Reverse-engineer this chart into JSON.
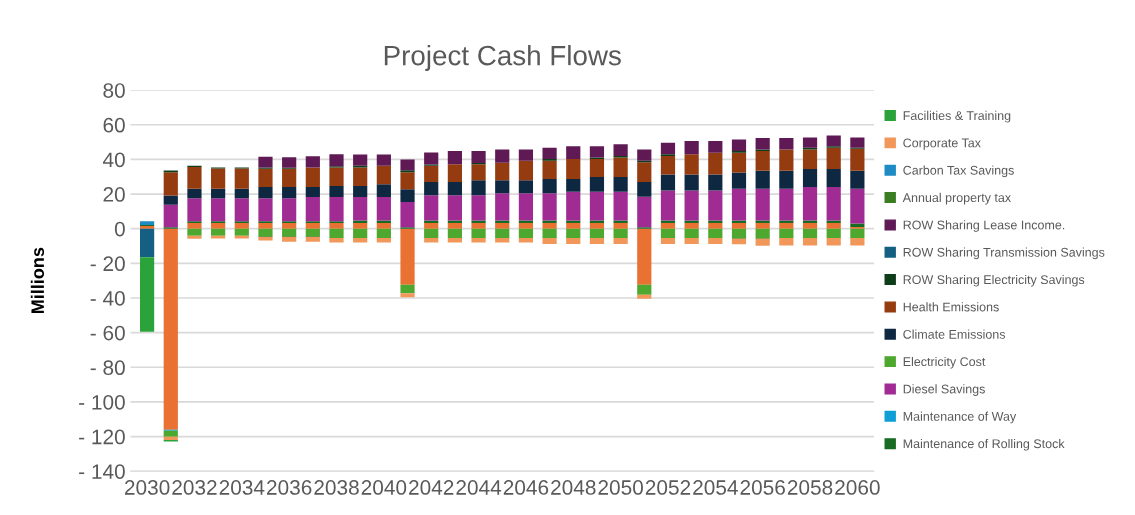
{
  "chart_data": {
    "type": "bar",
    "stacked": true,
    "title": "Project Cash Flows",
    "ylabel": "Millions",
    "categories": [
      "2030",
      null,
      "2032",
      null,
      "2034",
      null,
      "2036",
      null,
      "2038",
      null,
      "2040",
      null,
      "2042",
      null,
      "2044",
      null,
      "2046",
      null,
      "2048",
      null,
      "2050",
      null,
      "2052",
      null,
      "2054",
      null,
      "2056",
      null,
      "2058",
      null,
      "2060"
    ],
    "ylim": [
      -140,
      80
    ],
    "yticks": [
      {
        "value": -140,
        "label": "- 140"
      },
      {
        "value": -120,
        "label": "- 120"
      },
      {
        "value": -100,
        "label": "- 100"
      },
      {
        "value": -80,
        "label": "- 80"
      },
      {
        "value": -60,
        "label": "- 60"
      },
      {
        "value": -40,
        "label": "- 40"
      },
      {
        "value": -20,
        "label": "- 20"
      },
      0,
      20,
      40,
      60,
      80
    ],
    "grid": "y",
    "legend": "right",
    "series": [
      {
        "color": "#e97132",
        "values": [
          1.5,
          -116,
          3.3,
          3.3,
          3.3,
          3.3,
          3.3,
          3.3,
          3.3,
          3.3,
          3.3,
          -32.4,
          3.3,
          3.3,
          3.3,
          3.3,
          3.3,
          3.3,
          3.3,
          3.3,
          3.3,
          -32.4,
          3.3,
          3.3,
          3.3,
          3.3,
          3.3,
          3.3,
          3.3,
          3.3,
          1.0
        ]
      },
      {
        "name": "Maintenance of Rolling Stock",
        "color": "#196b24",
        "values": [
          0.7,
          0.9,
          1.0,
          1.0,
          1.0,
          1.0,
          1.0,
          1.0,
          1.0,
          1.5,
          1.5,
          0.9,
          1.5,
          1.5,
          1.5,
          1.5,
          1.5,
          1.5,
          1.5,
          1.5,
          1.5,
          0.8,
          1.5,
          1.5,
          1.5,
          1.5,
          1.5,
          1.5,
          1.5,
          1.5,
          2.0
        ]
      },
      {
        "name": "Maintenance of Way",
        "color": "#0f9ed5",
        "values": [
          0,
          -0.7,
          0,
          0,
          0,
          0,
          0,
          0,
          0,
          0,
          0,
          0,
          0,
          0,
          0,
          0,
          0,
          0,
          0,
          0,
          0,
          0,
          0,
          0,
          0,
          0,
          0,
          0,
          0,
          0,
          0
        ]
      },
      {
        "name": "Diesel Savings",
        "color": "#a02b93",
        "values": [
          0,
          13.0,
          13.3,
          13.3,
          13.3,
          13.3,
          13.3,
          14.0,
          14.0,
          13.5,
          13.5,
          14.5,
          14.5,
          14.5,
          14.5,
          15.6,
          15.6,
          15.6,
          16.5,
          16.5,
          16.5,
          17.7,
          17.2,
          17.2,
          17.2,
          18.3,
          18.3,
          18.3,
          19.3,
          19.3,
          20.1
        ]
      },
      {
        "name": "Electricity Cost",
        "color": "#4ea72e",
        "values": [
          0,
          -3.4,
          -4.0,
          -4.0,
          -4.0,
          -4.4,
          -4.4,
          -4.4,
          -5.3,
          -5.3,
          -5.3,
          -4.8,
          -5.3,
          -5.3,
          -5.3,
          -5.3,
          -5.3,
          -5.3,
          -5.3,
          -5.3,
          -5.3,
          -5.7,
          -5.3,
          -5.3,
          -5.3,
          -5.3,
          -5.3,
          -5.3,
          -5.3,
          -5.3,
          -5.3
        ]
      },
      {
        "name": "Climate Emissions",
        "color": "#0e2841",
        "values": [
          0,
          5.2,
          5.5,
          5.5,
          5.5,
          6.5,
          6.5,
          5.8,
          6.3,
          6.3,
          7.4,
          7.4,
          7.6,
          7.6,
          8.7,
          7.6,
          7.6,
          8.3,
          7.4,
          8.5,
          8.5,
          8.4,
          9.3,
          9.3,
          9.3,
          9.3,
          10.4,
          10.4,
          10.3,
          10.3,
          10.4
        ]
      },
      {
        "name": "Health Emissions",
        "color": "#953b10",
        "values": [
          0,
          13.5,
          12.5,
          11.7,
          11.7,
          10.5,
          10.5,
          11.3,
          10.8,
          10.8,
          10.6,
          9.8,
          9.4,
          10.3,
          9.2,
          10.1,
          11.3,
          10.6,
          11.5,
          10.4,
          11.3,
          11.4,
          10.6,
          11.7,
          12.6,
          11.5,
          11.3,
          12.2,
          11.3,
          12.3,
          12.6
        ]
      },
      {
        "name": "ROW Sharing Electricity Savings",
        "color": "#0e3d1a",
        "values": [
          0,
          1.0,
          0.7,
          0.6,
          0.6,
          0.8,
          0.6,
          0,
          0.7,
          0.9,
          0,
          1.1,
          0.7,
          0,
          0.8,
          0,
          0,
          0.9,
          0,
          0.9,
          0.9,
          1.0,
          1.1,
          0,
          0,
          0.9,
          0.9,
          0,
          1.0,
          0.9,
          0.6
        ]
      },
      {
        "name": "ROW Sharing Transmission Savings",
        "color": "#156082",
        "values": [
          -16.5,
          0,
          0,
          0,
          0,
          0,
          0,
          0,
          0,
          0,
          0,
          0,
          0,
          0,
          0,
          0,
          0,
          0,
          0,
          0,
          0,
          0,
          0,
          0,
          0,
          0,
          0,
          0,
          0,
          0,
          0
        ]
      },
      {
        "name": "ROW Sharing Lease Income.",
        "color": "#5f1a55",
        "values": [
          0,
          0,
          0,
          0,
          0,
          6.1,
          6.1,
          6.4,
          6.9,
          6.5,
          6.5,
          6.3,
          7.0,
          7.6,
          6.8,
          7.6,
          6.4,
          6.5,
          7.4,
          6.5,
          6.7,
          6.4,
          6.6,
          7.6,
          6.7,
          6.7,
          6.7,
          6.7,
          6.0,
          6.2,
          6.0
        ]
      },
      {
        "name": "Annual property tax",
        "color": "#3b7d23",
        "values": [
          0,
          0,
          0,
          0,
          0,
          -0.4,
          -0.4,
          -0.4,
          0,
          0,
          0,
          0,
          0,
          0,
          0,
          0,
          0,
          0,
          0,
          0,
          0,
          0,
          0,
          0,
          0,
          -0.5,
          -0.5,
          0,
          0,
          0,
          0
        ]
      },
      {
        "name": "Carbon Tax Savings",
        "color": "#1e8bc3",
        "values": [
          2.1,
          0,
          0,
          0,
          0,
          0,
          0,
          0,
          0,
          0,
          0,
          0,
          0,
          0,
          0,
          0,
          0,
          0,
          0,
          0,
          0,
          0,
          0,
          0,
          0,
          0,
          0,
          0,
          0,
          0,
          0
        ]
      },
      {
        "name": "Corporate Tax",
        "color": "#f1975a",
        "values": [
          0,
          -1.9,
          -1.8,
          -1.6,
          -1.6,
          -2.0,
          -2.8,
          -2.8,
          -2.7,
          -2.7,
          -2.7,
          -2.3,
          -2.7,
          -2.7,
          -2.7,
          -2.7,
          -2.7,
          -3.5,
          -3.5,
          -3.5,
          -3.5,
          -2.3,
          -3.5,
          -3.5,
          -3.5,
          -3.2,
          -4.1,
          -4.4,
          -4.4,
          -4.4,
          -4.4
        ]
      },
      {
        "name": "Facilities & Training",
        "color": "#2aa33b",
        "values": [
          -43,
          -0.9,
          0,
          0,
          0,
          0,
          0,
          0,
          0,
          0,
          0,
          0,
          0,
          0,
          0,
          0,
          0,
          0,
          0,
          0,
          0,
          0,
          0,
          0,
          0,
          0,
          0,
          0,
          0,
          0,
          0
        ]
      }
    ]
  }
}
